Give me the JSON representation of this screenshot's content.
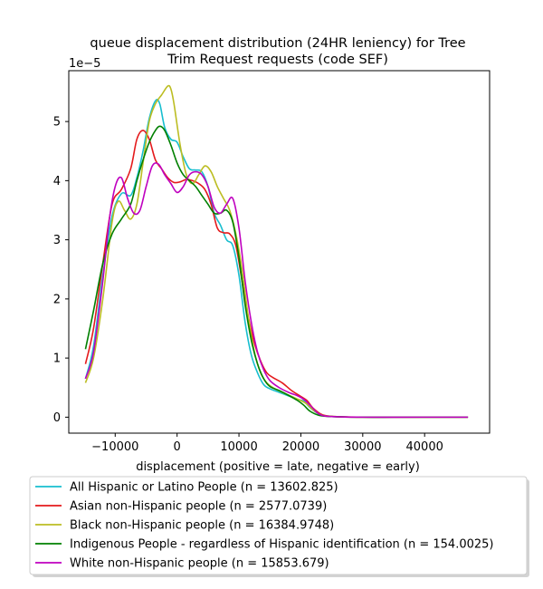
{
  "chart_data": {
    "type": "line",
    "title_lines": [
      "queue displacement distribution (24HR leniency) for Tree",
      "Trim Request  requests (code SEF)"
    ],
    "xlabel": "displacement (positive = late, negative = early)",
    "ylabel": "",
    "y_multiplier": "1e−5",
    "x_ticks": [
      -10000,
      0,
      10000,
      20000,
      30000,
      40000
    ],
    "x_tick_labels": [
      "−10000",
      "0",
      "10000",
      "20000",
      "30000",
      "40000"
    ],
    "y_ticks": [
      0,
      1,
      2,
      3,
      4,
      5
    ],
    "y_tick_labels": [
      "0",
      "1",
      "2",
      "3",
      "4",
      "5"
    ],
    "xlim": [
      -17500,
      50500
    ],
    "ylim": [
      -0.27,
      5.86
    ],
    "y_units_note": "values in units of 1e-5",
    "grid": false,
    "legend_position": "below plot",
    "series": [
      {
        "name": "All Hispanic or Latino People (n = 13602.825)",
        "color": "#17becf",
        "x": [
          -14800,
          -13500,
          -12000,
          -10500,
          -9000,
          -7500,
          -6500,
          -5500,
          -4500,
          -3500,
          -2800,
          -2000,
          -1000,
          0,
          1000,
          2000,
          3000,
          4000,
          5000,
          6000,
          7000,
          8000,
          9000,
          10000,
          11000,
          12000,
          13000,
          14000,
          15000,
          16500,
          18000,
          19500,
          20500,
          21500,
          23000,
          25000,
          30000,
          35000,
          40000,
          47000
        ],
        "y": [
          0.65,
          1.2,
          2.4,
          3.4,
          3.78,
          3.75,
          4.05,
          4.5,
          5.05,
          5.35,
          5.3,
          4.9,
          4.7,
          4.65,
          4.4,
          4.2,
          4.18,
          4.15,
          3.9,
          3.45,
          3.25,
          3.0,
          2.9,
          2.4,
          1.6,
          1.05,
          0.75,
          0.55,
          0.48,
          0.42,
          0.36,
          0.3,
          0.27,
          0.16,
          0.05,
          0.01,
          0.0,
          0.0,
          0.0,
          0.0
        ]
      },
      {
        "name": "Asian non-Hispanic people (n = 2577.0739)",
        "color": "#e41a1c",
        "x": [
          -14800,
          -13500,
          -12000,
          -10500,
          -9000,
          -7500,
          -6500,
          -5500,
          -4500,
          -3500,
          -2500,
          -1500,
          -500,
          500,
          1500,
          2500,
          3500,
          4500,
          5500,
          6500,
          7500,
          8500,
          9500,
          10500,
          11500,
          12500,
          13500,
          14500,
          15500,
          17000,
          18500,
          20000,
          21000,
          22000,
          23500,
          25500,
          30000,
          35000,
          40000,
          47000
        ],
        "y": [
          0.9,
          1.5,
          2.6,
          3.6,
          3.85,
          4.2,
          4.7,
          4.85,
          4.7,
          4.35,
          4.2,
          4.05,
          3.97,
          3.98,
          4.02,
          4.0,
          3.95,
          3.85,
          3.6,
          3.2,
          3.12,
          3.1,
          2.9,
          2.3,
          1.7,
          1.25,
          0.95,
          0.75,
          0.67,
          0.58,
          0.45,
          0.35,
          0.28,
          0.15,
          0.04,
          0.01,
          0.0,
          0.0,
          0.0,
          0.0
        ]
      },
      {
        "name": "Black non-Hispanic people (n = 16384.9748)",
        "color": "#bcbd22",
        "x": [
          -14800,
          -13500,
          -12000,
          -10500,
          -9500,
          -8500,
          -7500,
          -6500,
          -5500,
          -4500,
          -3500,
          -2500,
          -1500,
          -1000,
          -500,
          500,
          1500,
          2500,
          3500,
          4500,
          5500,
          6500,
          7500,
          8500,
          9500,
          10500,
          11500,
          12500,
          13500,
          14500,
          15500,
          17000,
          18500,
          20000,
          21000,
          22000,
          23500,
          25500,
          30000,
          47000
        ],
        "y": [
          0.58,
          1.0,
          2.0,
          3.3,
          3.65,
          3.5,
          3.35,
          3.6,
          4.3,
          5.0,
          5.3,
          5.45,
          5.6,
          5.55,
          5.3,
          4.6,
          4.1,
          3.95,
          4.1,
          4.25,
          4.15,
          3.9,
          3.7,
          3.5,
          3.1,
          2.5,
          1.7,
          1.1,
          0.75,
          0.58,
          0.5,
          0.42,
          0.35,
          0.28,
          0.22,
          0.12,
          0.03,
          0.01,
          0.0,
          0.0
        ]
      },
      {
        "name": "Indigenous People - regardless of Hispanic identification (n = 154.0025)",
        "color": "#008000",
        "x": [
          -14800,
          -13500,
          -12000,
          -10500,
          -9000,
          -7500,
          -6500,
          -5500,
          -4500,
          -3500,
          -2800,
          -2000,
          -1000,
          0,
          1000,
          2000,
          3000,
          4000,
          5000,
          6000,
          7000,
          8000,
          9000,
          10000,
          11000,
          12000,
          13000,
          14000,
          15000,
          16500,
          18000,
          19500,
          20500,
          21500,
          23000,
          25000,
          30000,
          35000,
          40000,
          47000
        ],
        "y": [
          1.15,
          1.8,
          2.6,
          3.1,
          3.35,
          3.6,
          4.0,
          4.35,
          4.65,
          4.85,
          4.92,
          4.85,
          4.6,
          4.3,
          4.1,
          4.0,
          3.9,
          3.75,
          3.6,
          3.45,
          3.45,
          3.5,
          3.3,
          2.7,
          1.9,
          1.3,
          0.9,
          0.65,
          0.52,
          0.45,
          0.37,
          0.28,
          0.2,
          0.1,
          0.03,
          0.01,
          0.0,
          0.0,
          0.0,
          0.0
        ]
      },
      {
        "name": "White non-Hispanic people (n = 15853.679)",
        "color": "#bf00bf",
        "x": [
          -14800,
          -13500,
          -12000,
          -11000,
          -10000,
          -9000,
          -8000,
          -7000,
          -6000,
          -5000,
          -4000,
          -3000,
          -2000,
          -1000,
          0,
          1000,
          2000,
          3000,
          4000,
          5000,
          6000,
          7000,
          8000,
          9000,
          10000,
          11000,
          12000,
          13000,
          14000,
          15000,
          16500,
          18000,
          19500,
          20500,
          21500,
          23000,
          25000,
          30000,
          40000,
          47000
        ],
        "y": [
          0.65,
          1.1,
          2.3,
          3.3,
          3.9,
          4.05,
          3.7,
          3.45,
          3.5,
          3.9,
          4.25,
          4.28,
          4.1,
          3.95,
          3.8,
          3.9,
          4.1,
          4.15,
          4.1,
          3.9,
          3.55,
          3.45,
          3.6,
          3.7,
          3.2,
          2.3,
          1.6,
          1.1,
          0.8,
          0.62,
          0.5,
          0.42,
          0.36,
          0.3,
          0.2,
          0.05,
          0.01,
          0.0,
          0.0,
          0.0
        ]
      }
    ]
  }
}
